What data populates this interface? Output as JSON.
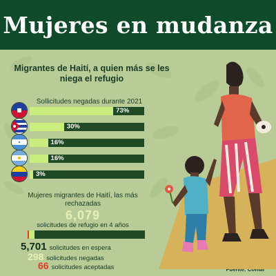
{
  "header": {
    "title": "Mujeres en mudanza"
  },
  "subtitle": "Migrantes de Haití, a quien más se les niega el refugio",
  "chart_data": [
    {
      "type": "bar",
      "title": "Sollicitudes negadas durante 2021",
      "categories": [
        "Haití",
        "Cuba",
        "Honduras",
        "Argentina",
        "Venezuela"
      ],
      "values": [
        73,
        30,
        16,
        16,
        3
      ],
      "value_labels": [
        "73%",
        "30%",
        "16%",
        "16%",
        "3%"
      ],
      "ylim": [
        0,
        100
      ],
      "colors": {
        "fill": "#c9ee7e",
        "track": "#1f4a24"
      }
    },
    {
      "type": "bar",
      "title": "Mujeres migrantes de Haití, las más rechazadas",
      "total": {
        "value": 6079,
        "label": "6,079",
        "caption": "solicitudes de refugio en 4 años"
      },
      "segments": [
        {
          "value": 66,
          "label": "66",
          "text": "solicitudes aceptadas",
          "color": "#e03a2b"
        },
        {
          "value": 298,
          "label": "298",
          "text": "solicitudes negadas",
          "color": "#c9ee7e"
        },
        {
          "value": 5701,
          "label": "5,701",
          "text": "solicitudes en espera",
          "color": "#1f4a24"
        }
      ]
    }
  ],
  "source": "Fuente: Comar",
  "flags": [
    "haiti-flag-icon",
    "cuba-flag-icon",
    "honduras-flag-icon",
    "argentina-flag-icon",
    "venezuela-flag-icon"
  ],
  "colors": {
    "header": "#0f4a2b",
    "background": "#b9cc98",
    "accent_red": "#e03a2b",
    "accent_light": "#e6f0b6"
  }
}
